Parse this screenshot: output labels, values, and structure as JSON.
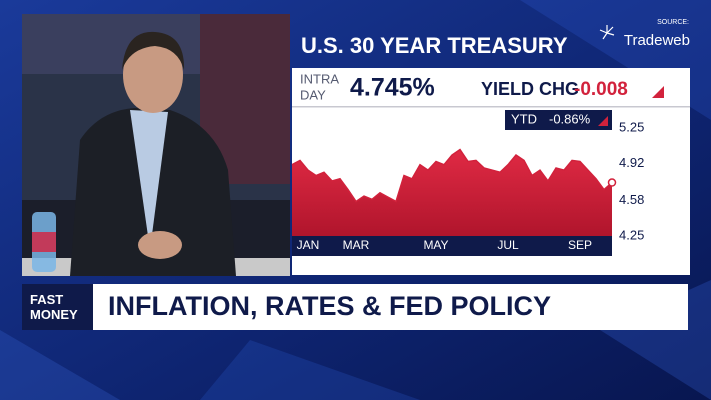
{
  "source_label": "SOURCE:",
  "source_name": "Tradeweb",
  "show": "FAST MONEY",
  "headline": "INFLATION, RATES & FED POLICY",
  "intraday_label": [
    "INTRA",
    "DAY"
  ],
  "intraday_value": "4.745%",
  "yield_chg_label": "YIELD CHG",
  "yield_chg_value": "-0.008",
  "ytd_label": "YTD",
  "ytd_value": "-0.86%",
  "chart_data": {
    "type": "area",
    "title": "U.S. 30 YEAR TREASURY",
    "categories": [
      null,
      null,
      "JAN",
      null,
      null,
      null,
      null,
      null,
      "MAR",
      null,
      null,
      null,
      null,
      null,
      null,
      null,
      null,
      null,
      "MAY",
      null,
      null,
      null,
      null,
      null,
      null,
      null,
      null,
      "JUL",
      null,
      null,
      null,
      null,
      null,
      null,
      null,
      null,
      "SEP",
      null,
      null,
      null,
      null
    ],
    "values": [
      4.91,
      4.95,
      4.86,
      4.81,
      4.84,
      4.76,
      4.78,
      4.68,
      4.57,
      4.62,
      4.59,
      4.65,
      4.61,
      4.57,
      4.81,
      4.78,
      4.91,
      4.86,
      4.94,
      4.91,
      5.0,
      5.05,
      4.94,
      4.95,
      4.88,
      4.86,
      4.84,
      4.91,
      5.0,
      4.95,
      4.81,
      4.86,
      4.76,
      4.88,
      4.86,
      4.95,
      4.94,
      4.86,
      4.78,
      4.68,
      4.745
    ],
    "color": "#d2223c",
    "ylim": [
      4.25,
      5.25
    ],
    "yticks": [
      4.25,
      4.58,
      4.92,
      5.25
    ],
    "grid": false
  }
}
